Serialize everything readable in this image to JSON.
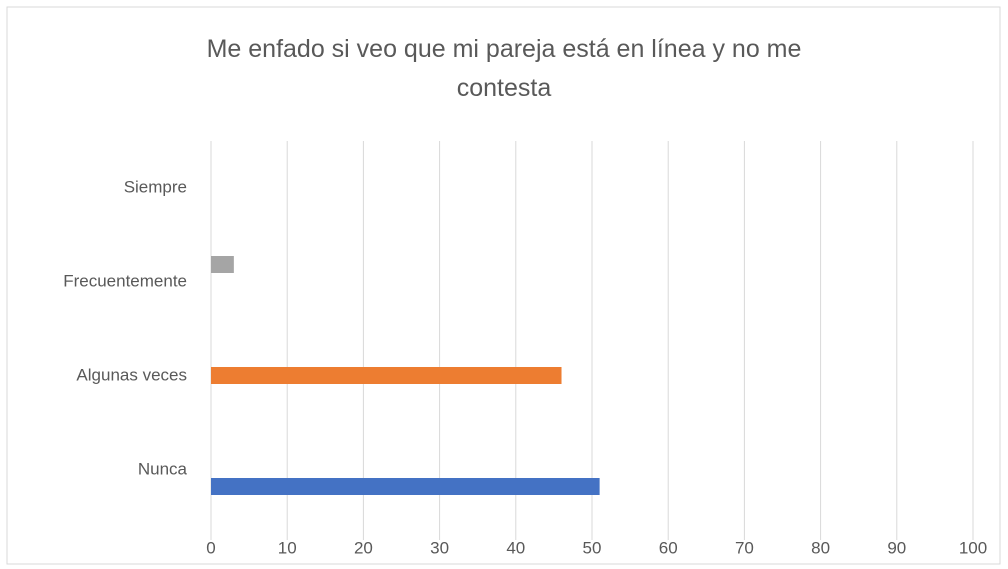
{
  "chart_data": {
    "type": "hbar",
    "title": "Me enfado si veo que mi pareja está en línea y no me contesta",
    "categories": [
      "Nunca",
      "Algunas veces",
      "Frecuentemente",
      "Siempre"
    ],
    "values": [
      51,
      46,
      3,
      0
    ],
    "colors": [
      "#4472c4",
      "#ed7d31",
      "#a5a5a5",
      "#ffc000"
    ],
    "xlim": [
      0,
      100
    ],
    "xticks": [
      0,
      10,
      20,
      30,
      40,
      50,
      60,
      70,
      80,
      90,
      100
    ],
    "grid": true
  }
}
